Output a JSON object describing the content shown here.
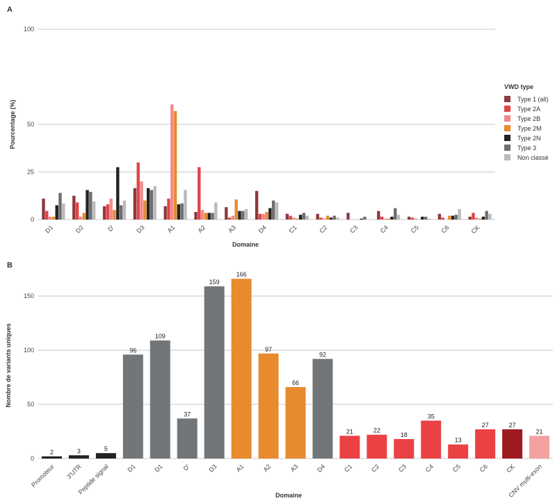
{
  "chart_data": [
    {
      "panel": "A",
      "type": "bar",
      "xlabel": "Domaine",
      "ylabel": "Pourcentage (%)",
      "ylim": [
        0,
        100
      ],
      "yticks": [
        0,
        25,
        50,
        100
      ],
      "grid": true,
      "legend_title": "VWD type",
      "legend_position": "right",
      "categories": [
        "D1",
        "D2",
        "D'",
        "D3",
        "A1",
        "A2",
        "A3",
        "D4",
        "C1",
        "C2",
        "C3",
        "C4",
        "C5",
        "C6",
        "CK"
      ],
      "series": [
        {
          "name": "Type 1 (all)",
          "color": "#8e3a3e",
          "values": [
            11,
            12.5,
            7,
            16.5,
            7,
            4,
            6.5,
            15,
            3,
            3,
            3.5,
            4.5,
            1.5,
            3,
            1.5
          ]
        },
        {
          "name": "Type 2A",
          "color": "#e04448",
          "values": [
            4.5,
            9,
            8,
            30,
            11,
            27.5,
            1,
            3,
            2,
            1,
            0,
            1.5,
            1,
            1,
            3.5
          ]
        },
        {
          "name": "Type 2B",
          "color": "#f08a8a",
          "values": [
            1.5,
            1.5,
            11,
            20,
            60.5,
            5,
            2,
            3,
            1,
            0.5,
            0,
            0.5,
            0.5,
            0,
            1
          ]
        },
        {
          "name": "Type 2M",
          "color": "#e88a2e",
          "values": [
            1.5,
            3.5,
            5,
            10,
            57,
            3.5,
            10.5,
            4,
            0.5,
            2,
            0,
            0.5,
            0,
            2,
            0.5
          ]
        },
        {
          "name": "Type 2N",
          "color": "#222222",
          "values": [
            7.5,
            15.5,
            27.5,
            16.5,
            8,
            3.5,
            4.5,
            6,
            2.5,
            1,
            0.5,
            1.5,
            1.5,
            2,
            1.5
          ]
        },
        {
          "name": "Type 3",
          "color": "#6e6e6e",
          "values": [
            14,
            14.5,
            7.5,
            15.5,
            8.5,
            3.5,
            4.5,
            10,
            3.5,
            2,
            1.5,
            6,
            1.5,
            2.5,
            4.5
          ]
        },
        {
          "name": "Non classé",
          "color": "#bbbbbb",
          "values": [
            8.5,
            9.5,
            10,
            17.5,
            15.5,
            9,
            5.5,
            9,
            2,
            1,
            0,
            2.5,
            0.5,
            5.5,
            3
          ]
        }
      ]
    },
    {
      "panel": "B",
      "type": "bar",
      "xlabel": "Domaine",
      "ylabel": "Nombre de variants uniques",
      "ylim": [
        0,
        170
      ],
      "yticks": [
        0,
        50,
        100,
        150
      ],
      "grid": true,
      "categories": [
        "Promoteur",
        "3'UTR",
        "Peptide signal",
        "D1",
        "D1",
        "D'",
        "D3",
        "A1",
        "A2",
        "A3",
        "D4",
        "C1",
        "C2",
        "C3",
        "C4",
        "C5",
        "C6",
        "CK",
        "CNV multi-exon"
      ],
      "values": [
        2,
        3,
        5,
        96,
        109,
        37,
        159,
        166,
        97,
        66,
        92,
        21,
        22,
        18,
        35,
        13,
        27,
        27,
        21
      ],
      "labels": [
        "2",
        "3",
        "5",
        "96",
        "109",
        "37",
        "159",
        "166",
        "97",
        "66",
        "92",
        "21",
        "22",
        "18",
        "35",
        "13",
        "27",
        "27",
        "21"
      ],
      "colors": [
        "#222222",
        "#222222",
        "#222222",
        "#727679",
        "#727679",
        "#727679",
        "#727679",
        "#e88a2e",
        "#e88a2e",
        "#e88a2e",
        "#727679",
        "#ea4145",
        "#ea4145",
        "#ea4145",
        "#ea4145",
        "#ea4145",
        "#ea4145",
        "#9e1c20",
        "#f2a2a0"
      ]
    }
  ]
}
